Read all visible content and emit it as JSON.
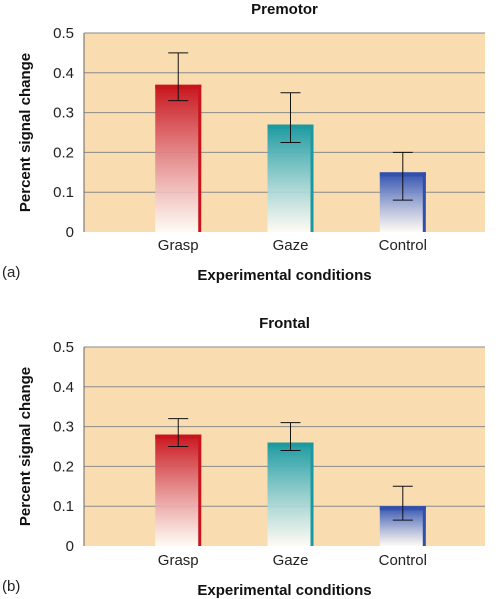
{
  "chart_data": [
    {
      "type": "bar",
      "panel_label": "(a)",
      "title": "Premotor",
      "xlabel": "Experimental conditions",
      "ylabel": "Percent signal change",
      "categories": [
        "Grasp",
        "Gaze",
        "Control"
      ],
      "values": [
        0.37,
        0.27,
        0.15
      ],
      "error": [
        0.06,
        0.06,
        0.06
      ],
      "error_high": [
        0.45,
        0.35,
        0.2
      ],
      "error_low": [
        0.33,
        0.225,
        0.08
      ],
      "ylim": [
        0,
        0.5
      ],
      "yticks": [
        "0",
        "0.1",
        "0.2",
        "0.3",
        "0.4",
        "0.5"
      ],
      "grid": true
    },
    {
      "type": "bar",
      "panel_label": "(b)",
      "title": "Frontal",
      "xlabel": "Experimental conditions",
      "ylabel": "Percent signal change",
      "categories": [
        "Grasp",
        "Gaze",
        "Control"
      ],
      "values": [
        0.28,
        0.26,
        0.1
      ],
      "error_high": [
        0.32,
        0.31,
        0.15
      ],
      "error_low": [
        0.25,
        0.24,
        0.065
      ],
      "ylim": [
        0,
        0.5
      ],
      "yticks": [
        "0",
        "0.1",
        "0.2",
        "0.3",
        "0.4",
        "0.5"
      ],
      "grid": true
    }
  ],
  "colors": {
    "plot_bg": "#f9ddb0",
    "grid": "#8a8a8a",
    "grasp": "#c8141c",
    "gaze": "#1a9aa0",
    "control": "#2f4fae"
  }
}
